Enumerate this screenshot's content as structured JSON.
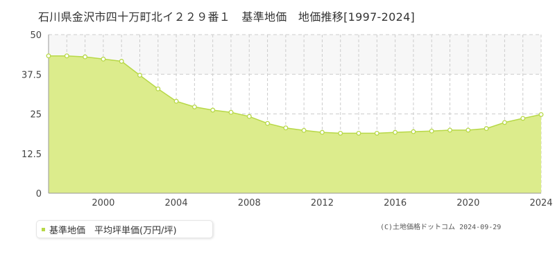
{
  "title": "石川県金沢市四十万町北イ２２９番１　基準地価　地価推移[1997-2024]",
  "legend": {
    "label": "基準地価　平均坪単価(万円/坪)"
  },
  "credit": "(C)土地価格ドットコム 2024-09-29",
  "colors": {
    "area_fill": "#dcec8c",
    "line": "#b7d847",
    "grid": "#cccccc",
    "upper_band": "#f7f7f7"
  },
  "chart_data": {
    "type": "area",
    "title": "石川県金沢市四十万町北イ２２９番１　基準地価　地価推移[1997-2024]",
    "xlabel": "",
    "ylabel": "",
    "xlim": [
      1997,
      2024
    ],
    "ylim": [
      0,
      50
    ],
    "yticks": [
      0,
      12.5,
      25,
      37.5,
      50
    ],
    "ytick_labels": [
      "0",
      "12.5",
      "25",
      "37.5",
      "50"
    ],
    "xticks": [
      2000,
      2004,
      2008,
      2012,
      2016,
      2020,
      2024
    ],
    "xtick_labels": [
      "2000",
      "2004",
      "2008",
      "2012",
      "2016",
      "2020",
      "2024"
    ],
    "grid": true,
    "legend_position": "bottom-left",
    "series": [
      {
        "name": "基準地価　平均坪単価(万円/坪)",
        "x": [
          1997,
          1998,
          1999,
          2000,
          2001,
          2002,
          2003,
          2004,
          2005,
          2006,
          2007,
          2008,
          2009,
          2010,
          2011,
          2012,
          2013,
          2014,
          2015,
          2016,
          2017,
          2018,
          2019,
          2020,
          2021,
          2022,
          2023,
          2024
        ],
        "values": [
          43.3,
          43.3,
          43.0,
          42.3,
          41.6,
          37.2,
          32.9,
          29.0,
          27.2,
          26.2,
          25.5,
          24.2,
          22.0,
          20.6,
          19.8,
          19.2,
          18.9,
          18.9,
          18.9,
          19.2,
          19.4,
          19.6,
          19.9,
          19.9,
          20.4,
          22.3,
          23.6,
          24.8
        ]
      }
    ]
  }
}
